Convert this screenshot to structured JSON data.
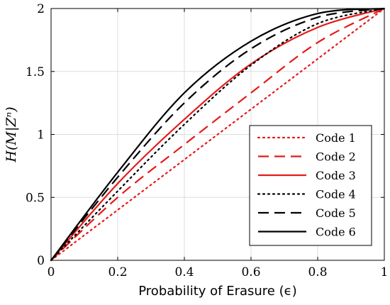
{
  "chart_data": {
    "type": "line",
    "xlabel": "Probability of Erasure (ϵ)",
    "ylabel": "H(M|Zⁿ)",
    "xlim": [
      0,
      1
    ],
    "ylim": [
      0,
      2
    ],
    "xticks": [
      "0",
      "0.2",
      "0.4",
      "0.6",
      "0.8",
      "1"
    ],
    "yticks": [
      "0",
      "0.5",
      "1",
      "1.5",
      "2"
    ],
    "grid": true,
    "legend_position": "bottom-right",
    "x": [
      0,
      0.2,
      0.4,
      0.6,
      0.8,
      1.0
    ],
    "series": [
      {
        "name": "Code 1",
        "color": "#e41a1a",
        "dash": "dotted",
        "values": [
          0,
          0.4,
          0.8,
          1.2,
          1.6,
          2.0
        ]
      },
      {
        "name": "Code 2",
        "color": "#e41a1a",
        "dash": "dashed",
        "values": [
          0,
          0.5,
          0.92,
          1.33,
          1.73,
          2.0
        ]
      },
      {
        "name": "Code 3",
        "color": "#e41a1a",
        "dash": "solid",
        "values": [
          0,
          0.61,
          1.12,
          1.56,
          1.85,
          2.0
        ]
      },
      {
        "name": "Code 4",
        "color": "#000000",
        "dash": "dotted",
        "values": [
          0,
          0.55,
          1.08,
          1.55,
          1.88,
          2.0
        ]
      },
      {
        "name": "Code 5",
        "color": "#000000",
        "dash": "dashed",
        "values": [
          0,
          0.66,
          1.25,
          1.68,
          1.93,
          2.0
        ]
      },
      {
        "name": "Code 6",
        "color": "#000000",
        "dash": "solid",
        "values": [
          0,
          0.7,
          1.33,
          1.74,
          1.96,
          2.0
        ]
      }
    ]
  }
}
